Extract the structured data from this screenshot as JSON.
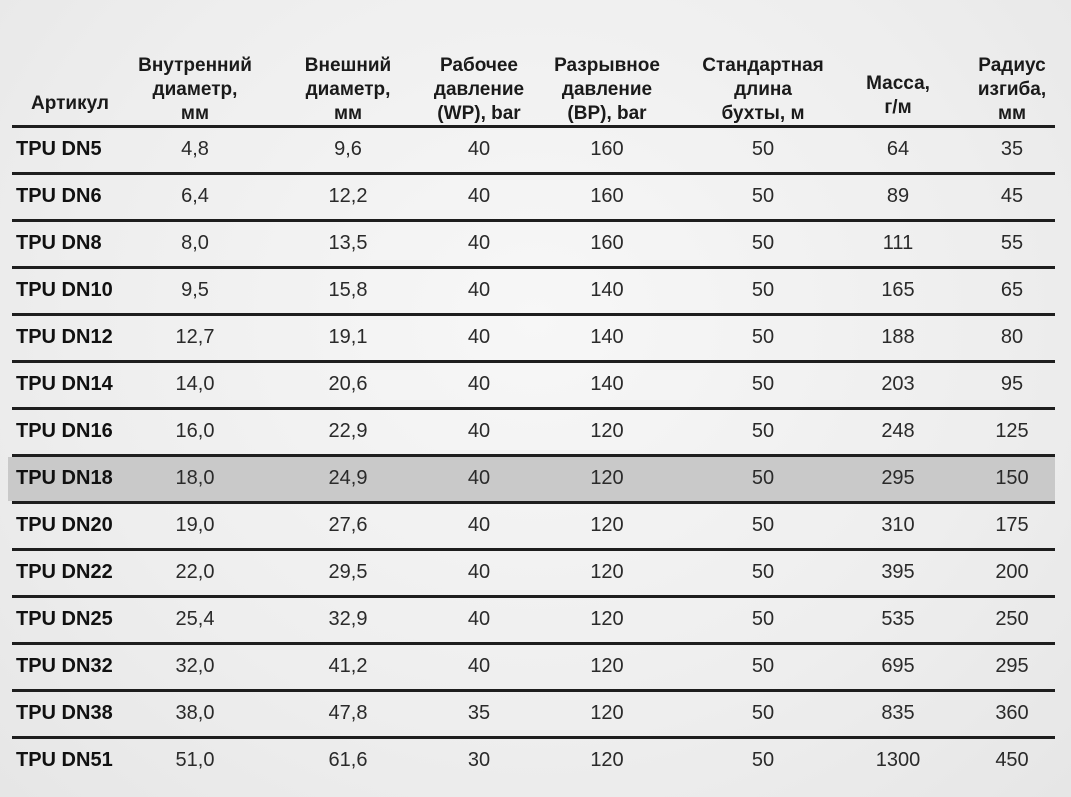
{
  "table": {
    "headers": [
      "Артикул",
      "Внутренний\nдиаметр,\nмм",
      "Внешний\nдиаметр,\nмм",
      "Рабочее\nдавление\n(WP), bar",
      "Разрывное\nдавление\n(BP), bar",
      "Стандартная\nдлина\nбухты, м",
      "Масса,\nг/м",
      "Радиус\nизгиба,\nмм"
    ],
    "highlighted_row": "TPU DN18",
    "highlight_color": "#c9c9c9",
    "rows": [
      [
        "TPU DN5",
        "4,8",
        "9,6",
        "40",
        "160",
        "50",
        "64",
        "35"
      ],
      [
        "TPU DN6",
        "6,4",
        "12,2",
        "40",
        "160",
        "50",
        "89",
        "45"
      ],
      [
        "TPU DN8",
        "8,0",
        "13,5",
        "40",
        "160",
        "50",
        "111",
        "55"
      ],
      [
        "TPU DN10",
        "9,5",
        "15,8",
        "40",
        "140",
        "50",
        "165",
        "65"
      ],
      [
        "TPU DN12",
        "12,7",
        "19,1",
        "40",
        "140",
        "50",
        "188",
        "80"
      ],
      [
        "TPU DN14",
        "14,0",
        "20,6",
        "40",
        "140",
        "50",
        "203",
        "95"
      ],
      [
        "TPU DN16",
        "16,0",
        "22,9",
        "40",
        "120",
        "50",
        "248",
        "125"
      ],
      [
        "TPU DN18",
        "18,0",
        "24,9",
        "40",
        "120",
        "50",
        "295",
        "150"
      ],
      [
        "TPU DN20",
        "19,0",
        "27,6",
        "40",
        "120",
        "50",
        "310",
        "175"
      ],
      [
        "TPU DN22",
        "22,0",
        "29,5",
        "40",
        "120",
        "50",
        "395",
        "200"
      ],
      [
        "TPU DN25",
        "25,4",
        "32,9",
        "40",
        "120",
        "50",
        "535",
        "250"
      ],
      [
        "TPU DN32",
        "32,0",
        "41,2",
        "40",
        "120",
        "50",
        "695",
        "295"
      ],
      [
        "TPU DN38",
        "38,0",
        "47,8",
        "35",
        "120",
        "50",
        "835",
        "360"
      ],
      [
        "TPU DN51",
        "51,0",
        "61,6",
        "30",
        "120",
        "50",
        "1300",
        "450"
      ]
    ]
  }
}
